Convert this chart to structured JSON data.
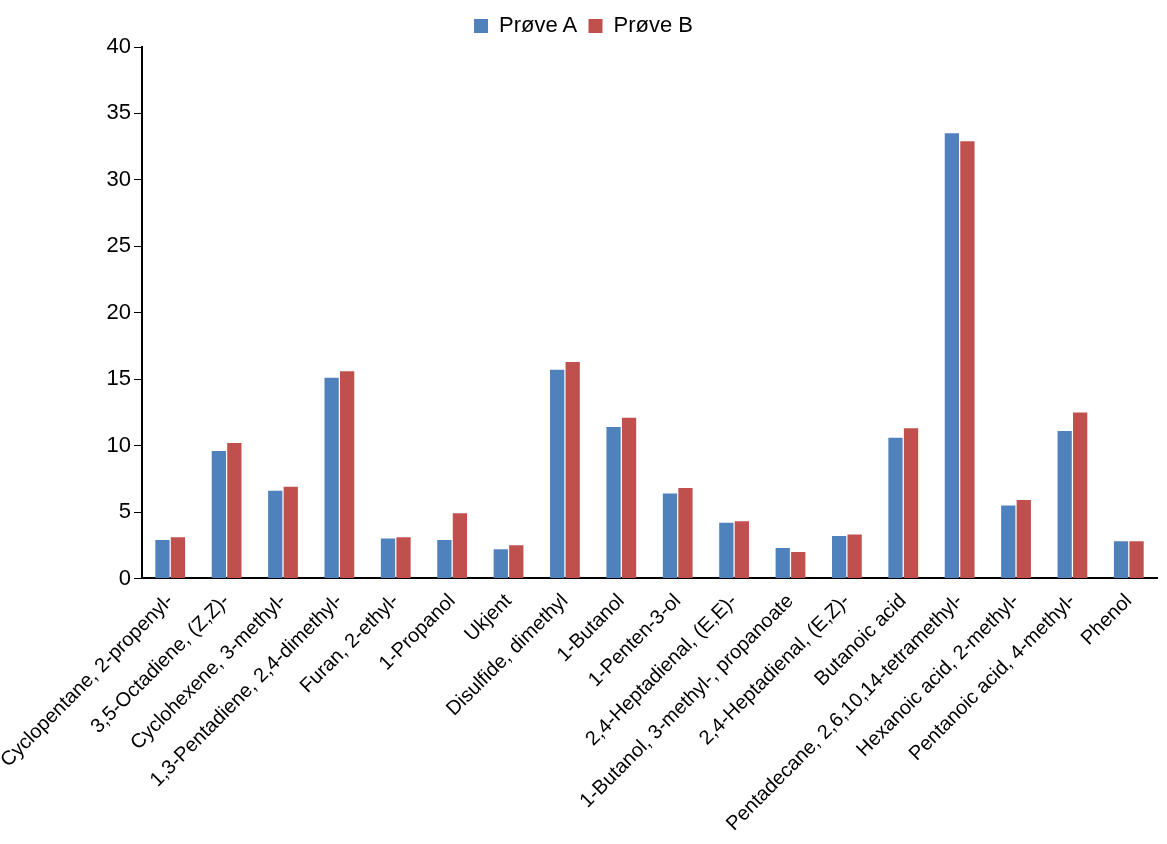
{
  "chart_data": {
    "type": "bar",
    "categories": [
      "Cyclopentane, 2-propenyl-",
      "3,5-Octadiene, (Z,Z)-",
      "Cyclohexene, 3-methyl-",
      "1,3-Pentadiene, 2,4-dimethyl-",
      "Furan, 2-ethyl-",
      "1-Propanol",
      "Ukjent",
      "Disulfide, dimethyl",
      "1-Butanol",
      "1-Penten-3-ol",
      "2,4-Heptadienal, (E,E)-",
      "1-Butanol, 3-methyl-, propanoate",
      "2,4-Heptadienal, (E,Z)-",
      "Butanoic acid",
      "Pentadecane, 2,6,10,14-tetramethyl-",
      "Hexanoic acid, 2-methyl-",
      "Pentanoic acid, 4-methyl-",
      "Phenol"
    ],
    "series": [
      {
        "name": "Prøve A",
        "color": "#4f81bd",
        "values": [
          2.9,
          9.6,
          6.6,
          15.1,
          3.0,
          2.9,
          2.2,
          15.7,
          11.4,
          6.4,
          4.2,
          2.3,
          3.2,
          10.6,
          33.5,
          5.5,
          11.1,
          2.8
        ]
      },
      {
        "name": "Prøve B",
        "color": "#c0504d",
        "values": [
          3.1,
          10.2,
          6.9,
          15.6,
          3.1,
          4.9,
          2.5,
          16.3,
          12.1,
          6.8,
          4.3,
          2.0,
          3.3,
          11.3,
          32.9,
          5.9,
          12.5,
          2.8
        ]
      }
    ],
    "ylim": [
      0,
      40
    ],
    "yticks": [
      0,
      5,
      10,
      15,
      20,
      25,
      30,
      35,
      40
    ],
    "grid": false,
    "legend": "top"
  }
}
